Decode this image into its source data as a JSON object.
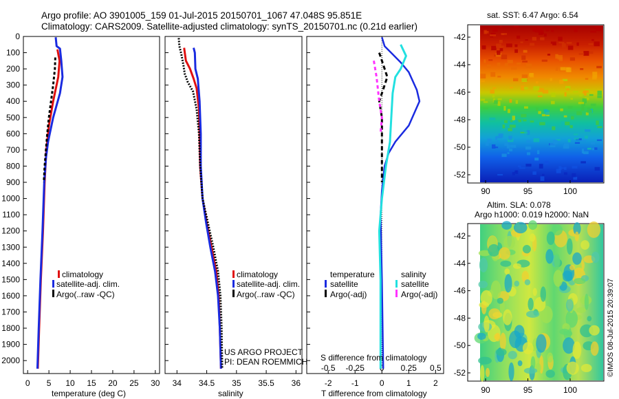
{
  "title": {
    "line1": "Argo profile: AO 3901005_159 01-Jul-2015 20150701_1067 47.048S 95.851E",
    "line2": "Climatology: CARS2009. Satellite-adjusted climatology: synTS_20150701.nc (0.21d earlier)"
  },
  "credit": "US ARGO PROJECT",
  "pi": "PI: DEAN ROEMMICH",
  "stamp": "©IMOS 08-Jul-2015 20:39:07",
  "colors": {
    "climatology": "#e01010",
    "satellite": "#1a2be0",
    "argo": "#000000",
    "satellite_s": "#22e0e0",
    "argo_s": "#ff33ff"
  },
  "maps": {
    "sst_title": "sat. SST: 6.47  Argo: 6.54",
    "sla_title1": "Altim. SLA: 0.078",
    "sla_title2": "Argo h1000: 0.019  h2000: NaN",
    "xticks": [
      "90",
      "95",
      "100"
    ],
    "yticks": [
      "-42",
      "-44",
      "-46",
      "-48",
      "-50",
      "-52"
    ]
  },
  "chart_data": [
    {
      "type": "line",
      "xlabel": "temperature (deg C)",
      "ylabel": "",
      "xlim": [
        -1,
        31
      ],
      "ylim": [
        2080,
        0
      ],
      "xticks": [
        "0",
        "5",
        "10",
        "15",
        "20",
        "25",
        "30"
      ],
      "yticks": [
        "0",
        "100",
        "200",
        "300",
        "400",
        "500",
        "600",
        "700",
        "800",
        "900",
        "1000",
        "1100",
        "1200",
        "1300",
        "1400",
        "1500",
        "1600",
        "1700",
        "1800",
        "1900",
        "2000"
      ],
      "legend": [
        "climatology",
        "satellite-adj. clim.",
        "Argo(..raw -QC)"
      ],
      "series": [
        {
          "name": "climatology",
          "points": [
            [
              7.0,
              80
            ],
            [
              7.5,
              150
            ],
            [
              7.2,
              250
            ],
            [
              6.0,
              400
            ],
            [
              5.0,
              550
            ],
            [
              4.4,
              700
            ],
            [
              4.0,
              900
            ],
            [
              3.6,
              1200
            ],
            [
              3.1,
              1500
            ],
            [
              2.7,
              1800
            ],
            [
              2.4,
              2050
            ]
          ]
        },
        {
          "name": "satellite-adj. clim.",
          "points": [
            [
              6.6,
              5
            ],
            [
              6.8,
              60
            ],
            [
              7.6,
              75
            ],
            [
              7.9,
              150
            ],
            [
              8.2,
              250
            ],
            [
              7.6,
              350
            ],
            [
              6.0,
              500
            ],
            [
              4.8,
              650
            ],
            [
              4.3,
              750
            ],
            [
              3.9,
              900
            ],
            [
              3.5,
              1200
            ],
            [
              3.0,
              1500
            ],
            [
              2.6,
              1800
            ],
            [
              2.3,
              2050
            ]
          ]
        },
        {
          "name": "Argo(..raw -QC)",
          "points": [
            [
              6.5,
              130
            ],
            [
              6.4,
              200
            ],
            [
              6.0,
              300
            ],
            [
              5.5,
              400
            ],
            [
              5.0,
              500
            ],
            [
              4.6,
              600
            ],
            [
              4.3,
              700
            ],
            [
              4.0,
              800
            ],
            [
              3.8,
              900
            ]
          ]
        }
      ]
    },
    {
      "type": "line",
      "xlabel": "salinity",
      "xlim": [
        33.8,
        36.1
      ],
      "xticks": [
        "34",
        "34.5",
        "35",
        "35.5",
        "36"
      ],
      "legend": [
        "climatology",
        "satellite-adj. clim.",
        "Argo(..raw -QC)"
      ],
      "series": [
        {
          "name": "climatology",
          "points": [
            [
              34.12,
              70
            ],
            [
              34.15,
              150
            ],
            [
              34.22,
              200
            ],
            [
              34.28,
              260
            ],
            [
              34.33,
              320
            ],
            [
              34.37,
              450
            ],
            [
              34.38,
              600
            ],
            [
              34.39,
              800
            ],
            [
              34.43,
              1000
            ],
            [
              34.5,
              1150
            ],
            [
              34.58,
              1300
            ],
            [
              34.66,
              1450
            ],
            [
              34.7,
              1600
            ],
            [
              34.72,
              1800
            ],
            [
              34.74,
              2050
            ]
          ]
        },
        {
          "name": "satellite-adj. clim.",
          "points": [
            [
              34.28,
              70
            ],
            [
              34.3,
              100
            ],
            [
              34.31,
              200
            ],
            [
              34.35,
              260
            ],
            [
              34.38,
              400
            ],
            [
              34.4,
              600
            ],
            [
              34.4,
              800
            ],
            [
              34.43,
              1000
            ],
            [
              34.49,
              1150
            ],
            [
              34.56,
              1300
            ],
            [
              34.64,
              1450
            ],
            [
              34.69,
              1600
            ],
            [
              34.72,
              1800
            ],
            [
              34.74,
              2050
            ]
          ]
        },
        {
          "name": "Argo(..raw -QC)",
          "points": [
            [
              34.03,
              10
            ],
            [
              34.04,
              60
            ],
            [
              34.08,
              120
            ],
            [
              34.11,
              180
            ],
            [
              34.13,
              230
            ],
            [
              34.18,
              280
            ],
            [
              34.27,
              340
            ],
            [
              34.33,
              450
            ],
            [
              34.37,
              600
            ],
            [
              34.39,
              800
            ],
            [
              34.43,
              1000
            ],
            [
              34.52,
              1150
            ],
            [
              34.61,
              1300
            ],
            [
              34.69,
              1450
            ],
            [
              34.73,
              1600
            ],
            [
              34.75,
              1800
            ],
            [
              34.76,
              2050
            ]
          ]
        }
      ]
    },
    {
      "type": "line",
      "xlabel": "T difference from climatology",
      "top_label": "S difference from climatology",
      "xlim": [
        -2.8,
        2.3
      ],
      "xticks": [
        "-2",
        "-1",
        "0",
        "1",
        "2"
      ],
      "top_ticks": [
        "-0.5",
        "-0.25",
        "0",
        "0.25",
        "0.5"
      ],
      "legend_headers": [
        "temperature",
        "salinity"
      ],
      "legend": [
        "satellite",
        "Argo(-adj)",
        "satellite",
        "Argo(-adj)"
      ],
      "series": [
        {
          "name": "temperature satellite",
          "points": [
            [
              0.0,
              5
            ],
            [
              0.1,
              60
            ],
            [
              0.4,
              110
            ],
            [
              0.7,
              160
            ],
            [
              1.0,
              220
            ],
            [
              1.3,
              330
            ],
            [
              1.4,
              400
            ],
            [
              1.0,
              550
            ],
            [
              0.5,
              650
            ],
            [
              0.25,
              720
            ],
            [
              0.1,
              800
            ],
            [
              0.0,
              950
            ],
            [
              -0.05,
              1100
            ],
            [
              0.0,
              1500
            ],
            [
              0.05,
              2050
            ]
          ]
        },
        {
          "name": "temperature Argo(-adj)",
          "points": [
            [
              -0.1,
              100
            ],
            [
              0.0,
              150
            ],
            [
              0.2,
              250
            ],
            [
              -0.1,
              400
            ],
            [
              0.0,
              500
            ],
            [
              0.0,
              600
            ],
            [
              0.0,
              900
            ]
          ]
        },
        {
          "name": "salinity satellite",
          "points": [
            [
              0.7,
              50
            ],
            [
              0.9,
              120
            ],
            [
              0.7,
              200
            ],
            [
              0.5,
              250
            ],
            [
              0.4,
              350
            ],
            [
              0.35,
              500
            ],
            [
              0.3,
              650
            ],
            [
              0.15,
              800
            ],
            [
              0.0,
              1000
            ],
            [
              -0.1,
              1200
            ],
            [
              -0.05,
              1500
            ],
            [
              -0.05,
              2050
            ]
          ]
        },
        {
          "name": "salinity Argo(-adj)",
          "points": [
            [
              -0.3,
              150
            ],
            [
              -0.2,
              250
            ],
            [
              -0.1,
              400
            ],
            [
              0.0,
              500
            ],
            [
              -0.05,
              600
            ]
          ]
        }
      ]
    }
  ]
}
